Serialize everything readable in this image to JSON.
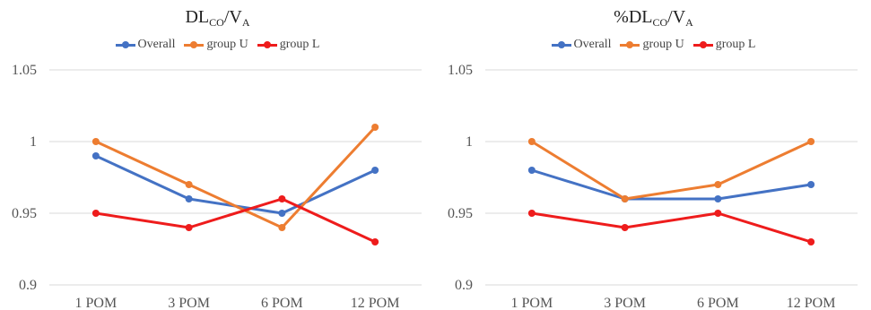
{
  "chart_data": [
    {
      "type": "line",
      "title": {
        "main": "DL",
        "sub1": "CO",
        "mid": "/V",
        "sub2": "A"
      },
      "categories": [
        "1 POM",
        "3 POM",
        "6 POM",
        "12 POM"
      ],
      "ylim": [
        0.9,
        1.05
      ],
      "yticks": [
        "0.9",
        "0.95",
        "1",
        "1.05"
      ],
      "ytick_values": [
        0.9,
        0.95,
        1.0,
        1.05
      ],
      "grid": true,
      "legend": "top",
      "series": [
        {
          "name": "Overall",
          "color": "#4472C4",
          "values": [
            0.99,
            0.96,
            0.95,
            0.98
          ]
        },
        {
          "name": "group U",
          "color": "#ED7D31",
          "values": [
            1.0,
            0.97,
            0.94,
            1.01
          ]
        },
        {
          "name": "group L",
          "color": "#EE1C1C",
          "values": [
            0.95,
            0.94,
            0.96,
            0.93
          ]
        }
      ]
    },
    {
      "type": "line",
      "title": {
        "main": "%DL",
        "sub1": "CO",
        "mid": "/V",
        "sub2": "A"
      },
      "categories": [
        "1 POM",
        "3 POM",
        "6 POM",
        "12 POM"
      ],
      "ylim": [
        0.9,
        1.05
      ],
      "yticks": [
        "0.9",
        "0.95",
        "1",
        "1.05"
      ],
      "ytick_values": [
        0.9,
        0.95,
        1.0,
        1.05
      ],
      "grid": true,
      "legend": "top",
      "series": [
        {
          "name": "Overall",
          "color": "#4472C4",
          "values": [
            0.98,
            0.96,
            0.96,
            0.97
          ]
        },
        {
          "name": "group U",
          "color": "#ED7D31",
          "values": [
            1.0,
            0.96,
            0.97,
            1.0
          ]
        },
        {
          "name": "group L",
          "color": "#EE1C1C",
          "values": [
            0.95,
            0.94,
            0.95,
            0.93
          ]
        }
      ]
    }
  ]
}
